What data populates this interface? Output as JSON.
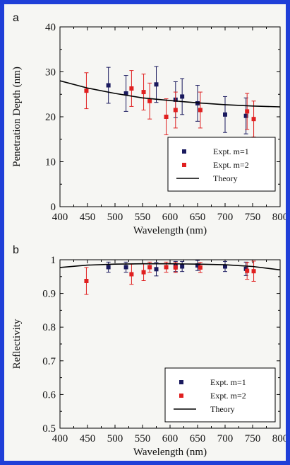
{
  "colors": {
    "frame": "#1f3fd8",
    "background": "#f6f6f3",
    "m1": "#1a1a5e",
    "m2": "#e02020",
    "theory": "#000000"
  },
  "chart_data": [
    {
      "type": "scatter",
      "panel_label": "a",
      "xlabel": "Wavelength (nm)",
      "ylabel": "Penetration Depth (nm)",
      "xlim": [
        400,
        800
      ],
      "ylim": [
        0,
        40
      ],
      "xticks": [
        400,
        450,
        500,
        550,
        600,
        650,
        700,
        750,
        800
      ],
      "yticks": [
        0,
        10,
        20,
        30,
        40
      ],
      "ytick_labels": [
        "0",
        "10",
        "20",
        "30",
        "40"
      ],
      "grid": false,
      "legend_position": "bottom-right",
      "series": [
        {
          "name": "Expt. m=1",
          "style": "square-marker",
          "points": [
            {
              "x": 488,
              "y": 27.0,
              "err": 4.0
            },
            {
              "x": 520,
              "y": 25.2,
              "err": 4.0
            },
            {
              "x": 575,
              "y": 27.2,
              "err": 4.0
            },
            {
              "x": 610,
              "y": 23.8,
              "err": 4.0
            },
            {
              "x": 622,
              "y": 24.5,
              "err": 4.0
            },
            {
              "x": 650,
              "y": 23.0,
              "err": 4.0
            },
            {
              "x": 700,
              "y": 20.5,
              "err": 4.0
            },
            {
              "x": 738,
              "y": 20.2,
              "err": 4.0
            }
          ]
        },
        {
          "name": "Expt. m=2",
          "style": "square-marker",
          "points": [
            {
              "x": 448,
              "y": 25.8,
              "err": 4.0
            },
            {
              "x": 530,
              "y": 26.3,
              "err": 4.0
            },
            {
              "x": 552,
              "y": 25.5,
              "err": 4.0
            },
            {
              "x": 563,
              "y": 23.5,
              "err": 4.0
            },
            {
              "x": 593,
              "y": 20.0,
              "err": 4.0
            },
            {
              "x": 610,
              "y": 21.5,
              "err": 4.0
            },
            {
              "x": 655,
              "y": 21.5,
              "err": 4.0
            },
            {
              "x": 740,
              "y": 21.2,
              "err": 4.0
            },
            {
              "x": 752,
              "y": 19.5,
              "err": 4.0
            }
          ]
        },
        {
          "name": "Theory",
          "style": "line",
          "x": [
            400,
            450,
            500,
            550,
            600,
            650,
            700,
            750,
            800
          ],
          "y": [
            28.0,
            26.4,
            25.2,
            24.2,
            23.6,
            23.1,
            22.7,
            22.4,
            22.2
          ]
        }
      ]
    },
    {
      "type": "scatter",
      "panel_label": "b",
      "xlabel": "Wavelength (nm)",
      "ylabel": "Reflectivity",
      "xlim": [
        400,
        800
      ],
      "ylim": [
        0.5,
        1.0
      ],
      "xticks": [
        400,
        450,
        500,
        550,
        600,
        650,
        700,
        750,
        800
      ],
      "yticks": [
        0.5,
        0.6,
        0.7,
        0.8,
        0.9,
        1.0
      ],
      "ytick_labels": [
        "0.5",
        "0.6",
        "0.7",
        "0.8",
        "0.9",
        "1"
      ],
      "grid": false,
      "legend_position": "bottom-right",
      "series": [
        {
          "name": "Expt. m=1",
          "style": "square-marker",
          "points": [
            {
              "x": 488,
              "y": 0.978,
              "err": 0.015
            },
            {
              "x": 520,
              "y": 0.978,
              "err": 0.015
            },
            {
              "x": 575,
              "y": 0.972,
              "err": 0.02
            },
            {
              "x": 610,
              "y": 0.98,
              "err": 0.015
            },
            {
              "x": 622,
              "y": 0.98,
              "err": 0.015
            },
            {
              "x": 650,
              "y": 0.983,
              "err": 0.015
            },
            {
              "x": 700,
              "y": 0.98,
              "err": 0.015
            },
            {
              "x": 738,
              "y": 0.973,
              "err": 0.02
            }
          ]
        },
        {
          "name": "Expt. m=2",
          "style": "square-marker",
          "points": [
            {
              "x": 448,
              "y": 0.937,
              "err": 0.04
            },
            {
              "x": 530,
              "y": 0.957,
              "err": 0.03
            },
            {
              "x": 552,
              "y": 0.963,
              "err": 0.025
            },
            {
              "x": 563,
              "y": 0.978,
              "err": 0.015
            },
            {
              "x": 593,
              "y": 0.978,
              "err": 0.015
            },
            {
              "x": 610,
              "y": 0.977,
              "err": 0.015
            },
            {
              "x": 655,
              "y": 0.977,
              "err": 0.015
            },
            {
              "x": 740,
              "y": 0.967,
              "err": 0.025
            },
            {
              "x": 752,
              "y": 0.966,
              "err": 0.03
            }
          ]
        },
        {
          "name": "Theory",
          "style": "line",
          "x": [
            400,
            450,
            500,
            550,
            600,
            650,
            700,
            750,
            800
          ],
          "y": [
            0.977,
            0.984,
            0.987,
            0.988,
            0.988,
            0.987,
            0.985,
            0.98,
            0.97
          ]
        }
      ]
    }
  ]
}
